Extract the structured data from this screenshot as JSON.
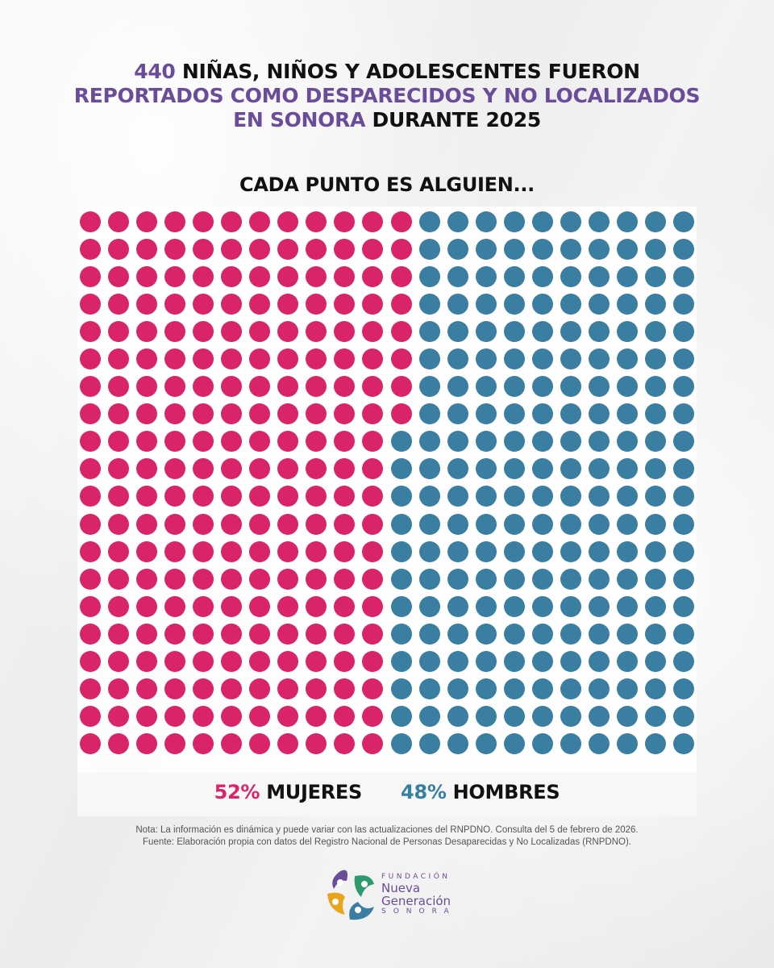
{
  "title": {
    "line1_highlight": "440",
    "line1_rest": " NIÑAS, NIÑOS Y ADOLESCENTES FUERON",
    "line2_highlight": "REPORTADOS COMO DESPARECIDOS Y NO LOCALIZADOS",
    "line3_highlight": "EN SONORA",
    "line3_rest": " DURANTE 2025"
  },
  "subtitle": "CADA PUNTO ES ALGUIEN...",
  "legend": {
    "female_pct": "52%",
    "female_label": " MUJERES",
    "male_pct": "48%",
    "male_label": " HOMBRES"
  },
  "colors": {
    "female": "#d9246a",
    "male": "#3a7ea1",
    "accent_purple": "#6b4c9a"
  },
  "note": {
    "line1": "Nota: La información es dinámica y puede variar con las actualizaciones del RNPDNO. Consulta del 5 de febrero de 2026.",
    "line2": "Fuente: Elaboración propia con datos del Registro Nacional de Personas Desaparecidas y No Localizadas (RNPDNO)."
  },
  "logo": {
    "line1": "FUNDACIÓN",
    "line2": "Nueva",
    "line3": "Generación",
    "line4": "SONORA"
  },
  "chart_data": {
    "type": "waffle",
    "title": "440 niñas, niños y adolescentes fueron reportados como desparecidos y no localizados en Sonora durante 2025",
    "subtitle": "Cada punto es alguien...",
    "total": 440,
    "grid": {
      "columns": 22,
      "rows": 20
    },
    "categories": [
      "Mujeres",
      "Hombres"
    ],
    "values": [
      228,
      212
    ],
    "percentages": [
      52,
      48
    ],
    "pink_per_row": [
      12,
      12,
      12,
      12,
      12,
      12,
      12,
      12,
      11,
      11,
      11,
      11,
      11,
      11,
      11,
      11,
      11,
      11,
      11,
      11
    ],
    "legend_position": "bottom"
  }
}
